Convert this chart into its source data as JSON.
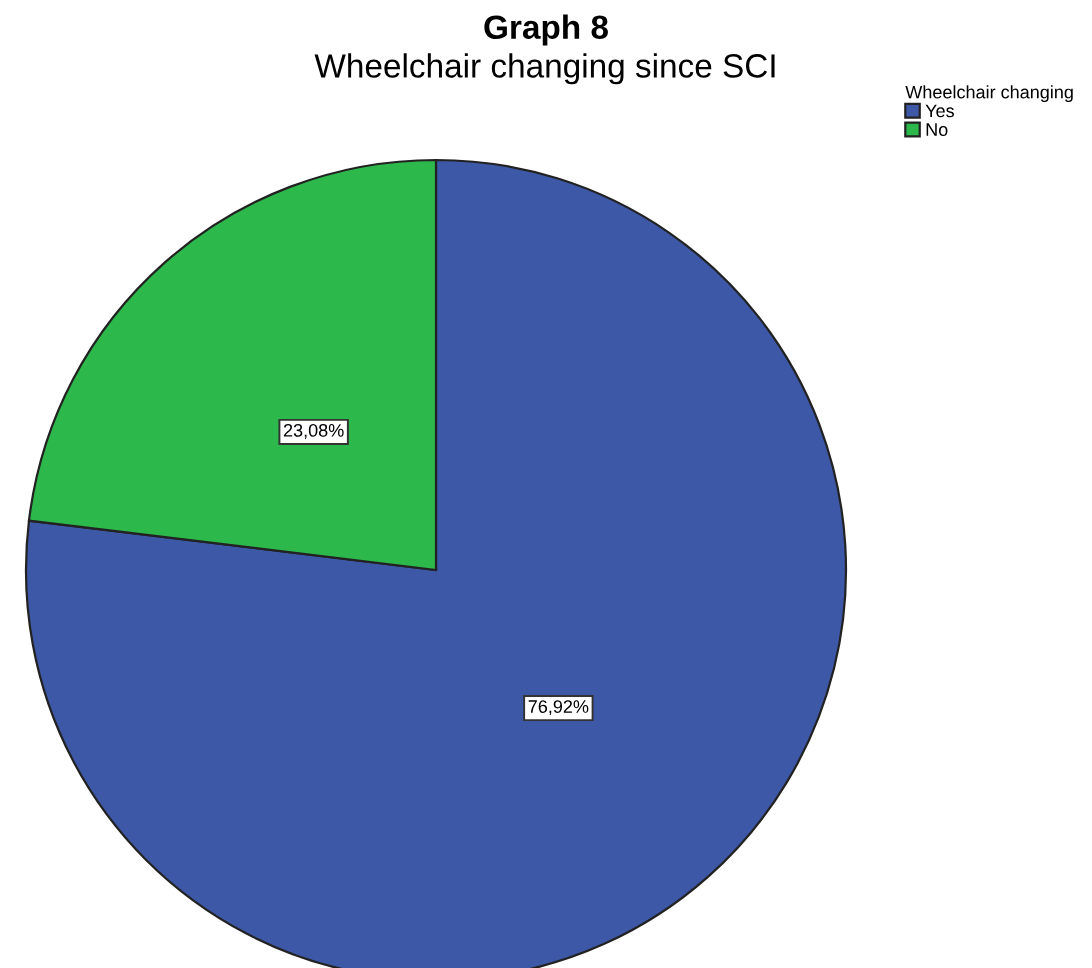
{
  "chart_data": {
    "type": "pie",
    "title": "Graph 8",
    "subtitle": "Wheelchair changing since SCI",
    "legend_title": "Wheelchair changing",
    "categories": [
      "Yes",
      "No"
    ],
    "values": [
      76.92,
      23.08
    ],
    "colors": [
      "#3e58a8",
      "#2db84b"
    ],
    "value_labels": [
      "76,92%",
      "23,08%"
    ],
    "legend": "top right"
  }
}
